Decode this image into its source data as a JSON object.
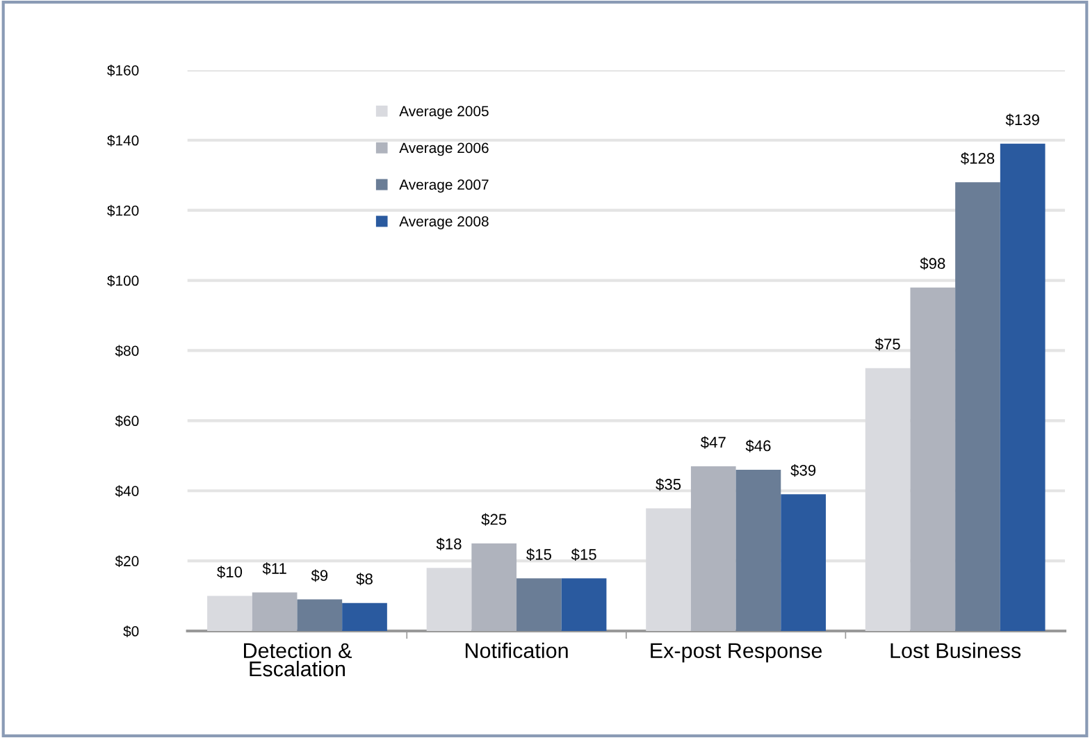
{
  "chart_data": {
    "type": "bar",
    "categories": [
      "Detection &\nEscalation",
      "Notification",
      "Ex-post Response",
      "Lost Business"
    ],
    "series": [
      {
        "name": "Average 2005",
        "color": "#d9dadf",
        "values": [
          10,
          18,
          35,
          75
        ],
        "value_labels": [
          "$10",
          "$18",
          "$35",
          "$75"
        ]
      },
      {
        "name": "Average 2006",
        "color": "#afb3bd",
        "values": [
          11,
          25,
          47,
          98
        ],
        "value_labels": [
          "$11",
          "$25",
          "$47",
          "$98"
        ]
      },
      {
        "name": "Average 2007",
        "color": "#6a7d96",
        "values": [
          9,
          15,
          46,
          128
        ],
        "value_labels": [
          "$9",
          "$15",
          "$46",
          "$128"
        ]
      },
      {
        "name": "Average 2008",
        "color": "#2a5a9f",
        "values": [
          8,
          15,
          39,
          139
        ],
        "value_labels": [
          "$8",
          "$15",
          "$39",
          "$139"
        ]
      }
    ],
    "ylim": [
      0,
      160
    ],
    "yticks": [
      {
        "value": 0,
        "label": "$0"
      },
      {
        "value": 20,
        "label": "$20"
      },
      {
        "value": 40,
        "label": "$40"
      },
      {
        "value": 60,
        "label": "$60"
      },
      {
        "value": 80,
        "label": "$80"
      },
      {
        "value": 100,
        "label": "$100"
      },
      {
        "value": 120,
        "label": "$120"
      },
      {
        "value": 140,
        "label": "$140"
      },
      {
        "value": 160,
        "label": "$160"
      }
    ],
    "grid": "y",
    "legend": "top left"
  }
}
